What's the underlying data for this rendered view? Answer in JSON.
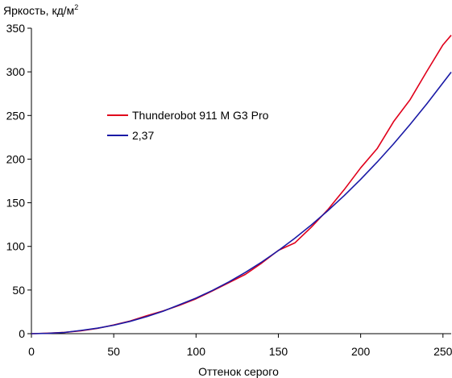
{
  "chart_data": {
    "type": "line",
    "title": "",
    "ylabel": "Яркость, кд/м",
    "ylabel_sup": "2",
    "xlabel": "Оттенок серого",
    "xlim": [
      0,
      255
    ],
    "ylim": [
      0,
      350
    ],
    "xticks": [
      0,
      50,
      100,
      150,
      200,
      250
    ],
    "yticks": [
      0,
      50,
      100,
      150,
      200,
      250,
      300,
      350
    ],
    "grid": false,
    "legend_position": "center-left",
    "series": [
      {
        "name": "Thunderobot 911 M G3 Pro",
        "color": "#e0001b",
        "x": [
          0,
          10,
          20,
          30,
          40,
          50,
          60,
          70,
          80,
          90,
          100,
          110,
          120,
          130,
          140,
          150,
          160,
          170,
          180,
          190,
          200,
          210,
          220,
          230,
          240,
          250,
          255
        ],
        "y": [
          0,
          0.6,
          1.5,
          3.3,
          6,
          10,
          14.5,
          20.5,
          26,
          32.5,
          40,
          49,
          58.5,
          68,
          81,
          95.5,
          104,
          122,
          142,
          165,
          190,
          212,
          243,
          268,
          300,
          331,
          342
        ]
      },
      {
        "name": "2,37",
        "color": "#1a1aa6",
        "x": [
          0,
          10,
          20,
          30,
          40,
          50,
          60,
          70,
          80,
          90,
          100,
          110,
          120,
          130,
          140,
          150,
          160,
          170,
          180,
          190,
          200,
          210,
          220,
          230,
          240,
          250,
          255
        ],
        "y": [
          0,
          0.4,
          1.4,
          3.7,
          6.3,
          9.7,
          14.1,
          19.5,
          25.8,
          33.2,
          40.7,
          49.6,
          59.4,
          70.3,
          82.2,
          95.2,
          109.3,
          124.5,
          140.8,
          158.2,
          176.8,
          196.6,
          217.5,
          239.6,
          262.9,
          287.4,
          299.7
        ]
      }
    ]
  }
}
